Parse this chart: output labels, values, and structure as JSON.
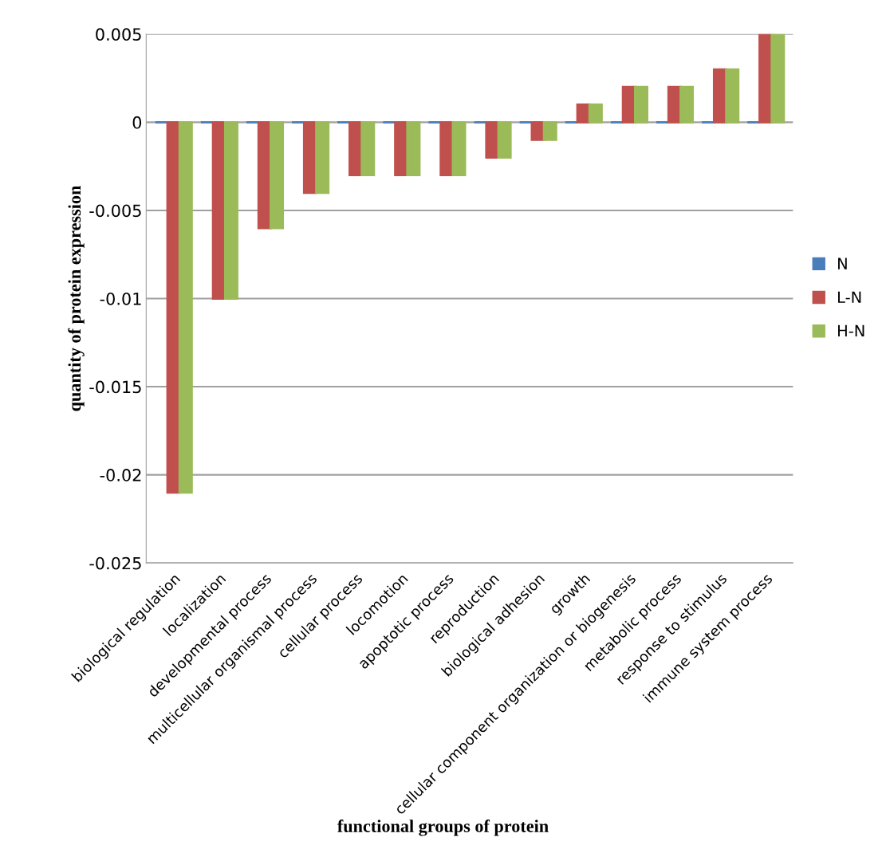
{
  "chart_data": {
    "type": "bar",
    "xlabel": "functional groups of protein",
    "ylabel": "quantity of protein expression",
    "categories": [
      "biological regulation",
      "localization",
      "developmental process",
      "multicellular organismal process",
      "cellular process",
      "locomotion",
      "apoptotic process",
      "reproduction",
      "biological adhesion",
      "growth",
      "cellular component organization or biogenesis",
      "metabolic process",
      "response to stimulus",
      "immune system process"
    ],
    "series": [
      {
        "name": "N",
        "color": "#4a7ebb",
        "values": [
          0,
          0,
          0,
          0,
          0,
          0,
          0,
          0,
          0,
          0,
          0,
          0,
          0,
          0
        ]
      },
      {
        "name": "L-N",
        "color": "#c0504d",
        "values": [
          -0.021,
          -0.01,
          -0.006,
          -0.004,
          -0.003,
          -0.003,
          -0.003,
          -0.002,
          -0.001,
          0.001,
          0.002,
          0.002,
          0.003,
          0.005
        ]
      },
      {
        "name": "H-N",
        "color": "#9bbb59",
        "values": [
          -0.021,
          -0.01,
          -0.006,
          -0.004,
          -0.003,
          -0.003,
          -0.003,
          -0.002,
          -0.001,
          0.001,
          0.002,
          0.002,
          0.003,
          0.005
        ]
      }
    ],
    "ylim": [
      -0.025,
      0.005
    ],
    "yticks": [
      -0.025,
      -0.02,
      -0.015,
      -0.01,
      -0.005,
      0,
      0.005
    ],
    "grid": "y",
    "legend": "right"
  }
}
